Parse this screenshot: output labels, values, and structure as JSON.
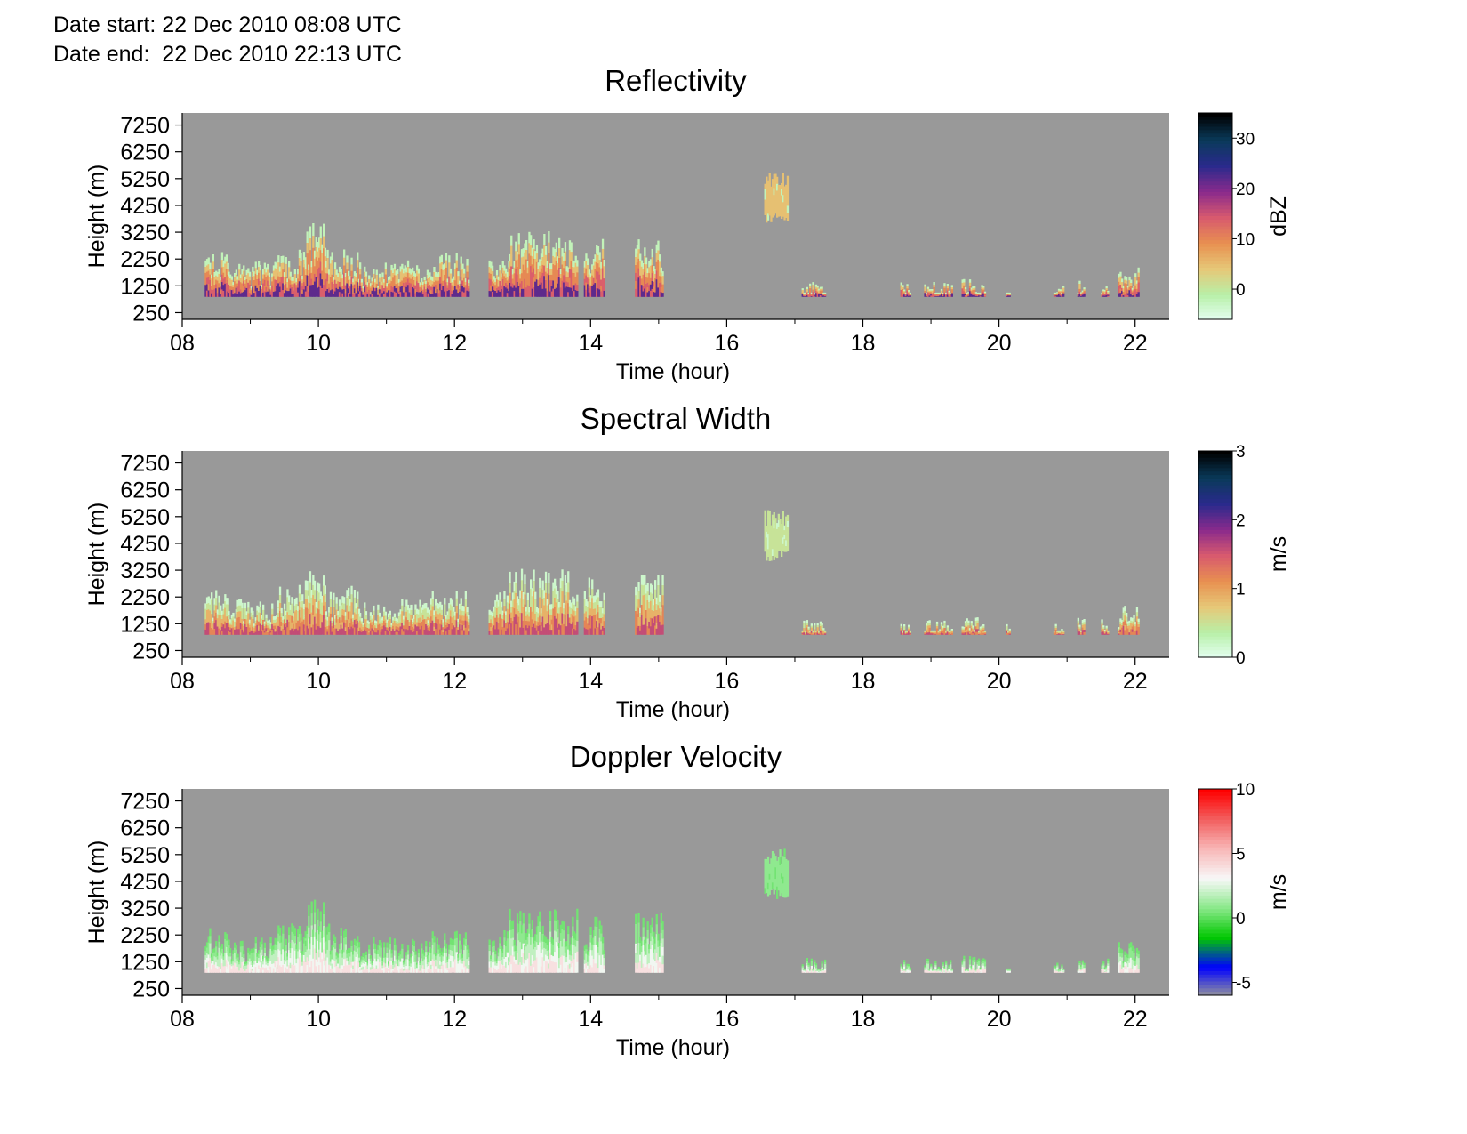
{
  "header": {
    "date_start": "Date start: 22 Dec 2010 08:08 UTC",
    "date_end": "Date end:  22 Dec 2010 22:13 UTC"
  },
  "colors": {
    "background": "#999999",
    "refl_stops": [
      "#e6fff5",
      "#b8f0a8",
      "#e6c878",
      "#e89050",
      "#d85a6e",
      "#8a2a8c",
      "#2a2a8c",
      "#0a3a5a",
      "#000000"
    ],
    "vel_stops": [
      "#999999",
      "#0000ff",
      "#00c800",
      "#88e888",
      "#f8f8f8",
      "#f8b8b8",
      "#f26060",
      "#ff0000"
    ]
  },
  "chart_data": [
    {
      "type": "heatmap",
      "title": "Reflectivity",
      "xlabel": "Time (hour)",
      "ylabel": "Height (m)",
      "x_ticks": [
        "08",
        "10",
        "12",
        "14",
        "16",
        "18",
        "20",
        "22"
      ],
      "y_ticks": [
        "7250",
        "6250",
        "5250",
        "4250",
        "3250",
        "2250",
        "1250",
        "250"
      ],
      "xlim": [
        8.0,
        22.5
      ],
      "ylim": [
        0,
        7700
      ],
      "colorbar": {
        "label": "dBZ",
        "ticks": [
          "30",
          "20",
          "10",
          "0"
        ],
        "range": [
          -6,
          35
        ],
        "palette": "refl_stops"
      },
      "mean_values": [
        -2,
        5,
        10,
        14,
        22
      ],
      "echo_columns": [
        {
          "from": 8.33,
          "to": 8.67,
          "top": 2600
        },
        {
          "from": 8.67,
          "to": 9.4,
          "top": 2200
        },
        {
          "from": 9.4,
          "to": 9.8,
          "top": 2700
        },
        {
          "from": 9.8,
          "to": 10.1,
          "top": 3600
        },
        {
          "from": 10.1,
          "to": 10.6,
          "top": 2700
        },
        {
          "from": 10.6,
          "to": 11.6,
          "top": 2200
        },
        {
          "from": 11.6,
          "to": 12.2,
          "top": 2500
        },
        {
          "from": 12.5,
          "to": 12.8,
          "top": 2500
        },
        {
          "from": 12.8,
          "to": 13.8,
          "top": 3300
        },
        {
          "from": 13.9,
          "to": 14.2,
          "top": 3000
        },
        {
          "from": 14.65,
          "to": 15.05,
          "top": 3100
        },
        {
          "from": 16.55,
          "to": 16.88,
          "top": 5500,
          "bottom": 3600
        },
        {
          "from": 17.1,
          "to": 17.45,
          "top": 1400
        },
        {
          "from": 18.55,
          "to": 18.7,
          "top": 1400
        },
        {
          "from": 18.9,
          "to": 19.3,
          "top": 1400
        },
        {
          "from": 19.45,
          "to": 19.8,
          "top": 1500
        },
        {
          "from": 20.1,
          "to": 20.15,
          "top": 1300
        },
        {
          "from": 20.8,
          "to": 20.95,
          "top": 1300
        },
        {
          "from": 21.15,
          "to": 21.25,
          "top": 1500
        },
        {
          "from": 21.5,
          "to": 21.6,
          "top": 1500
        },
        {
          "from": 21.75,
          "to": 22.05,
          "top": 2000
        }
      ]
    },
    {
      "type": "heatmap",
      "title": "Spectral Width",
      "xlabel": "Time (hour)",
      "ylabel": "Height (m)",
      "x_ticks": [
        "08",
        "10",
        "12",
        "14",
        "16",
        "18",
        "20",
        "22"
      ],
      "y_ticks": [
        "7250",
        "6250",
        "5250",
        "4250",
        "3250",
        "2250",
        "1250",
        "250"
      ],
      "xlim": [
        8.0,
        22.5
      ],
      "ylim": [
        0,
        7700
      ],
      "colorbar": {
        "label": "m/s",
        "ticks": [
          "3",
          "2",
          "1",
          "0"
        ],
        "range": [
          0,
          3
        ],
        "palette": "refl_stops"
      },
      "mean_values": [
        0.2,
        0.5,
        0.9,
        1.2,
        1.6
      ],
      "echo_columns": [
        {
          "from": 8.33,
          "to": 8.67,
          "top": 2600
        },
        {
          "from": 8.67,
          "to": 9.4,
          "top": 2200
        },
        {
          "from": 9.4,
          "to": 9.8,
          "top": 2700
        },
        {
          "from": 9.8,
          "to": 10.1,
          "top": 3600
        },
        {
          "from": 10.1,
          "to": 10.6,
          "top": 2700
        },
        {
          "from": 10.6,
          "to": 11.6,
          "top": 2200
        },
        {
          "from": 11.6,
          "to": 12.2,
          "top": 2500
        },
        {
          "from": 12.5,
          "to": 12.8,
          "top": 2500
        },
        {
          "from": 12.8,
          "to": 13.8,
          "top": 3300
        },
        {
          "from": 13.9,
          "to": 14.2,
          "top": 3000
        },
        {
          "from": 14.65,
          "to": 15.05,
          "top": 3100
        },
        {
          "from": 16.55,
          "to": 16.88,
          "top": 5500,
          "bottom": 3600
        },
        {
          "from": 17.1,
          "to": 17.45,
          "top": 1400
        },
        {
          "from": 18.55,
          "to": 18.7,
          "top": 1400
        },
        {
          "from": 18.9,
          "to": 19.3,
          "top": 1400
        },
        {
          "from": 19.45,
          "to": 19.8,
          "top": 1500
        },
        {
          "from": 20.1,
          "to": 20.15,
          "top": 1300
        },
        {
          "from": 20.8,
          "to": 20.95,
          "top": 1300
        },
        {
          "from": 21.15,
          "to": 21.25,
          "top": 1500
        },
        {
          "from": 21.5,
          "to": 21.6,
          "top": 1500
        },
        {
          "from": 21.75,
          "to": 22.05,
          "top": 2000
        }
      ]
    },
    {
      "type": "heatmap",
      "title": "Doppler Velocity",
      "xlabel": "Time (hour)",
      "ylabel": "Height (m)",
      "x_ticks": [
        "08",
        "10",
        "12",
        "14",
        "16",
        "18",
        "20",
        "22"
      ],
      "y_ticks": [
        "7250",
        "6250",
        "5250",
        "4250",
        "3250",
        "2250",
        "1250",
        "250"
      ],
      "xlim": [
        8.0,
        22.5
      ],
      "ylim": [
        0,
        7700
      ],
      "colorbar": {
        "label": "m/s",
        "ticks": [
          "10",
          "5",
          "0",
          "-5"
        ],
        "range": [
          -6,
          10
        ],
        "palette": "vel_stops"
      },
      "mean_values": [
        0.5,
        1.0,
        2.0,
        3.0,
        4.0
      ],
      "echo_columns": [
        {
          "from": 8.33,
          "to": 8.67,
          "top": 2600
        },
        {
          "from": 8.67,
          "to": 9.4,
          "top": 2200
        },
        {
          "from": 9.4,
          "to": 9.8,
          "top": 2700
        },
        {
          "from": 9.8,
          "to": 10.1,
          "top": 3600
        },
        {
          "from": 10.1,
          "to": 10.6,
          "top": 2700
        },
        {
          "from": 10.6,
          "to": 11.6,
          "top": 2200
        },
        {
          "from": 11.6,
          "to": 12.2,
          "top": 2500
        },
        {
          "from": 12.5,
          "to": 12.8,
          "top": 2500
        },
        {
          "from": 12.8,
          "to": 13.8,
          "top": 3300
        },
        {
          "from": 13.9,
          "to": 14.2,
          "top": 3000
        },
        {
          "from": 14.65,
          "to": 15.05,
          "top": 3100
        },
        {
          "from": 16.55,
          "to": 16.88,
          "top": 5500,
          "bottom": 3600
        },
        {
          "from": 17.1,
          "to": 17.45,
          "top": 1400
        },
        {
          "from": 18.55,
          "to": 18.7,
          "top": 1400
        },
        {
          "from": 18.9,
          "to": 19.3,
          "top": 1400
        },
        {
          "from": 19.45,
          "to": 19.8,
          "top": 1500
        },
        {
          "from": 20.1,
          "to": 20.15,
          "top": 1300
        },
        {
          "from": 20.8,
          "to": 20.95,
          "top": 1300
        },
        {
          "from": 21.15,
          "to": 21.25,
          "top": 1500
        },
        {
          "from": 21.5,
          "to": 21.6,
          "top": 1500
        },
        {
          "from": 21.75,
          "to": 22.05,
          "top": 2000
        }
      ]
    }
  ]
}
